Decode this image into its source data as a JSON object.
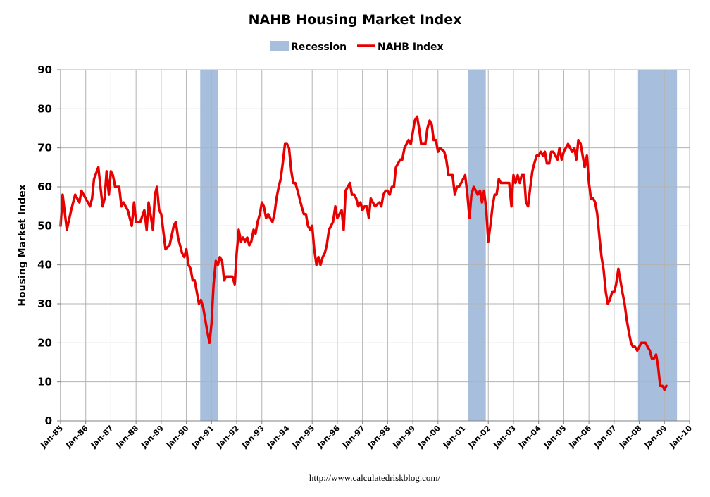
{
  "chart_data": {
    "type": "line",
    "title": "NAHB Housing Market Index",
    "xlabel": "",
    "ylabel": "Housing Market Index",
    "ylim": [
      0,
      90
    ],
    "yticks": [
      0,
      10,
      20,
      30,
      40,
      50,
      60,
      70,
      80,
      90
    ],
    "xlim_years": [
      1985,
      2010
    ],
    "xtick_labels": [
      "Jan-85",
      "Jan-86",
      "Jan-87",
      "Jan-88",
      "Jan-89",
      "Jan-90",
      "Jan-91",
      "Jan-92",
      "Jan-93",
      "Jan-94",
      "Jan-95",
      "Jan-96",
      "Jan-97",
      "Jan-98",
      "Jan-99",
      "Jan-00",
      "Jan-01",
      "Jan-02",
      "Jan-03",
      "Jan-04",
      "Jan-05",
      "Jan-06",
      "Jan-07",
      "Jan-08",
      "Jan-09",
      "Jan-10"
    ],
    "grid": true,
    "legend_position": "top-center",
    "legend": [
      "Recession",
      "NAHB Index"
    ],
    "colors": {
      "index": "#e80000",
      "recession": "#a7bfdd",
      "grid": "#b3b3b3",
      "axis": "#808080"
    },
    "recessions": [
      {
        "start": 1990.55,
        "end": 1991.25
      },
      {
        "start": 2001.2,
        "end": 2001.9
      },
      {
        "start": 2007.95,
        "end": 2009.5
      }
    ],
    "series": [
      {
        "name": "NAHB Index",
        "points": [
          [
            1985.0,
            50
          ],
          [
            1985.08,
            58
          ],
          [
            1985.25,
            49
          ],
          [
            1985.42,
            54
          ],
          [
            1985.58,
            58
          ],
          [
            1985.75,
            56
          ],
          [
            1985.83,
            59
          ],
          [
            1986.0,
            57
          ],
          [
            1986.17,
            55
          ],
          [
            1986.25,
            57
          ],
          [
            1986.33,
            62
          ],
          [
            1986.5,
            65
          ],
          [
            1986.67,
            55
          ],
          [
            1986.75,
            57
          ],
          [
            1986.83,
            64
          ],
          [
            1986.92,
            58
          ],
          [
            1987.0,
            64
          ],
          [
            1987.08,
            63
          ],
          [
            1987.17,
            60
          ],
          [
            1987.33,
            60
          ],
          [
            1987.42,
            55
          ],
          [
            1987.5,
            56
          ],
          [
            1987.67,
            54
          ],
          [
            1987.83,
            50
          ],
          [
            1987.92,
            56
          ],
          [
            1988.0,
            51
          ],
          [
            1988.17,
            51
          ],
          [
            1988.33,
            54
          ],
          [
            1988.42,
            49
          ],
          [
            1988.5,
            56
          ],
          [
            1988.67,
            49
          ],
          [
            1988.75,
            58
          ],
          [
            1988.83,
            60
          ],
          [
            1988.92,
            54
          ],
          [
            1989.0,
            53
          ],
          [
            1989.17,
            44
          ],
          [
            1989.33,
            45
          ],
          [
            1989.5,
            50
          ],
          [
            1989.58,
            51
          ],
          [
            1989.67,
            47
          ],
          [
            1989.83,
            43
          ],
          [
            1989.92,
            42
          ],
          [
            1990.0,
            44
          ],
          [
            1990.08,
            40
          ],
          [
            1990.17,
            39
          ],
          [
            1990.25,
            36
          ],
          [
            1990.33,
            36
          ],
          [
            1990.5,
            30
          ],
          [
            1990.58,
            31
          ],
          [
            1990.67,
            29
          ],
          [
            1990.83,
            23
          ],
          [
            1990.92,
            20
          ],
          [
            1991.0,
            25
          ],
          [
            1991.08,
            35
          ],
          [
            1991.17,
            41
          ],
          [
            1991.25,
            40
          ],
          [
            1991.33,
            42
          ],
          [
            1991.42,
            41
          ],
          [
            1991.5,
            36
          ],
          [
            1991.58,
            37
          ],
          [
            1991.67,
            37
          ],
          [
            1991.83,
            37
          ],
          [
            1991.92,
            35
          ],
          [
            1992.0,
            43
          ],
          [
            1992.08,
            49
          ],
          [
            1992.17,
            46
          ],
          [
            1992.25,
            47
          ],
          [
            1992.33,
            46
          ],
          [
            1992.42,
            47
          ],
          [
            1992.5,
            45
          ],
          [
            1992.58,
            46
          ],
          [
            1992.67,
            49
          ],
          [
            1992.75,
            48
          ],
          [
            1992.83,
            51
          ],
          [
            1992.92,
            53
          ],
          [
            1993.0,
            56
          ],
          [
            1993.08,
            55
          ],
          [
            1993.17,
            52
          ],
          [
            1993.25,
            53
          ],
          [
            1993.33,
            52
          ],
          [
            1993.42,
            51
          ],
          [
            1993.5,
            53
          ],
          [
            1993.58,
            57
          ],
          [
            1993.67,
            60
          ],
          [
            1993.75,
            62
          ],
          [
            1993.83,
            66
          ],
          [
            1993.92,
            71
          ],
          [
            1994.0,
            71
          ],
          [
            1994.08,
            70
          ],
          [
            1994.17,
            64
          ],
          [
            1994.25,
            61
          ],
          [
            1994.33,
            61
          ],
          [
            1994.42,
            59
          ],
          [
            1994.5,
            57
          ],
          [
            1994.58,
            55
          ],
          [
            1994.67,
            53
          ],
          [
            1994.75,
            53
          ],
          [
            1994.83,
            50
          ],
          [
            1994.92,
            49
          ],
          [
            1995.0,
            50
          ],
          [
            1995.08,
            44
          ],
          [
            1995.17,
            40
          ],
          [
            1995.25,
            42
          ],
          [
            1995.33,
            40
          ],
          [
            1995.42,
            42
          ],
          [
            1995.5,
            43
          ],
          [
            1995.58,
            45
          ],
          [
            1995.67,
            49
          ],
          [
            1995.75,
            50
          ],
          [
            1995.83,
            51
          ],
          [
            1995.92,
            55
          ],
          [
            1996.0,
            52
          ],
          [
            1996.08,
            53
          ],
          [
            1996.17,
            54
          ],
          [
            1996.25,
            49
          ],
          [
            1996.33,
            59
          ],
          [
            1996.5,
            61
          ],
          [
            1996.58,
            58
          ],
          [
            1996.67,
            58
          ],
          [
            1996.75,
            57
          ],
          [
            1996.83,
            55
          ],
          [
            1996.92,
            56
          ],
          [
            1997.0,
            54
          ],
          [
            1997.08,
            55
          ],
          [
            1997.17,
            55
          ],
          [
            1997.25,
            52
          ],
          [
            1997.33,
            57
          ],
          [
            1997.5,
            55
          ],
          [
            1997.67,
            56
          ],
          [
            1997.75,
            55
          ],
          [
            1997.83,
            58
          ],
          [
            1997.92,
            59
          ],
          [
            1998.0,
            59
          ],
          [
            1998.08,
            58
          ],
          [
            1998.17,
            60
          ],
          [
            1998.25,
            60
          ],
          [
            1998.33,
            65
          ],
          [
            1998.5,
            67
          ],
          [
            1998.58,
            67
          ],
          [
            1998.67,
            70
          ],
          [
            1998.75,
            71
          ],
          [
            1998.83,
            72
          ],
          [
            1998.92,
            71
          ],
          [
            1999.0,
            74
          ],
          [
            1999.08,
            77
          ],
          [
            1999.17,
            78
          ],
          [
            1999.25,
            75
          ],
          [
            1999.33,
            71
          ],
          [
            1999.5,
            71
          ],
          [
            1999.58,
            75
          ],
          [
            1999.67,
            77
          ],
          [
            1999.75,
            76
          ],
          [
            1999.83,
            72
          ],
          [
            1999.92,
            72
          ],
          [
            2000.0,
            69
          ],
          [
            2000.08,
            70
          ],
          [
            2000.25,
            69
          ],
          [
            2000.33,
            67
          ],
          [
            2000.42,
            63
          ],
          [
            2000.58,
            63
          ],
          [
            2000.67,
            58
          ],
          [
            2000.75,
            60
          ],
          [
            2000.83,
            60
          ],
          [
            2000.92,
            61
          ],
          [
            2001.0,
            62
          ],
          [
            2001.08,
            63
          ],
          [
            2001.17,
            58
          ],
          [
            2001.25,
            52
          ],
          [
            2001.33,
            58
          ],
          [
            2001.42,
            60
          ],
          [
            2001.5,
            59
          ],
          [
            2001.58,
            58
          ],
          [
            2001.67,
            59
          ],
          [
            2001.75,
            56
          ],
          [
            2001.83,
            59
          ],
          [
            2001.92,
            54
          ],
          [
            2002.0,
            46
          ],
          [
            2002.08,
            50
          ],
          [
            2002.17,
            55
          ],
          [
            2002.25,
            58
          ],
          [
            2002.33,
            58
          ],
          [
            2002.42,
            62
          ],
          [
            2002.5,
            61
          ],
          [
            2002.58,
            61
          ],
          [
            2002.83,
            61
          ],
          [
            2002.92,
            55
          ],
          [
            2003.0,
            63
          ],
          [
            2003.08,
            61
          ],
          [
            2003.17,
            63
          ],
          [
            2003.25,
            61
          ],
          [
            2003.33,
            63
          ],
          [
            2003.42,
            63
          ],
          [
            2003.5,
            56
          ],
          [
            2003.58,
            55
          ],
          [
            2003.67,
            60
          ],
          [
            2003.75,
            64
          ],
          [
            2003.83,
            66
          ],
          [
            2003.92,
            68
          ],
          [
            2004.0,
            68
          ],
          [
            2004.08,
            69
          ],
          [
            2004.17,
            68
          ],
          [
            2004.25,
            69
          ],
          [
            2004.33,
            66
          ],
          [
            2004.42,
            66
          ],
          [
            2004.5,
            69
          ],
          [
            2004.58,
            69
          ],
          [
            2004.67,
            68
          ],
          [
            2004.75,
            67
          ],
          [
            2004.83,
            70
          ],
          [
            2004.92,
            67
          ],
          [
            2005.0,
            69
          ],
          [
            2005.08,
            70
          ],
          [
            2005.17,
            71
          ],
          [
            2005.25,
            70
          ],
          [
            2005.33,
            69
          ],
          [
            2005.42,
            70
          ],
          [
            2005.5,
            67
          ],
          [
            2005.58,
            72
          ],
          [
            2005.67,
            71
          ],
          [
            2005.75,
            68
          ],
          [
            2005.83,
            65
          ],
          [
            2005.92,
            68
          ],
          [
            2006.0,
            61
          ],
          [
            2006.08,
            57
          ],
          [
            2006.17,
            57
          ],
          [
            2006.25,
            56
          ],
          [
            2006.33,
            53
          ],
          [
            2006.42,
            47
          ],
          [
            2006.5,
            42
          ],
          [
            2006.58,
            39
          ],
          [
            2006.67,
            33
          ],
          [
            2006.75,
            30
          ],
          [
            2006.83,
            31
          ],
          [
            2006.92,
            33
          ],
          [
            2007.0,
            33
          ],
          [
            2007.08,
            35
          ],
          [
            2007.17,
            39
          ],
          [
            2007.25,
            36
          ],
          [
            2007.33,
            33
          ],
          [
            2007.42,
            30
          ],
          [
            2007.5,
            26
          ],
          [
            2007.58,
            23
          ],
          [
            2007.67,
            20
          ],
          [
            2007.75,
            19
          ],
          [
            2007.83,
            19
          ],
          [
            2007.92,
            18
          ],
          [
            2008.0,
            19
          ],
          [
            2008.08,
            20
          ],
          [
            2008.17,
            20
          ],
          [
            2008.25,
            20
          ],
          [
            2008.33,
            19
          ],
          [
            2008.42,
            18
          ],
          [
            2008.5,
            16
          ],
          [
            2008.58,
            16
          ],
          [
            2008.67,
            17
          ],
          [
            2008.75,
            14
          ],
          [
            2008.83,
            9
          ],
          [
            2008.92,
            9
          ],
          [
            2009.0,
            8
          ],
          [
            2009.08,
            9
          ]
        ]
      }
    ]
  },
  "source_text": "http://www.calculatedriskblog.com/"
}
